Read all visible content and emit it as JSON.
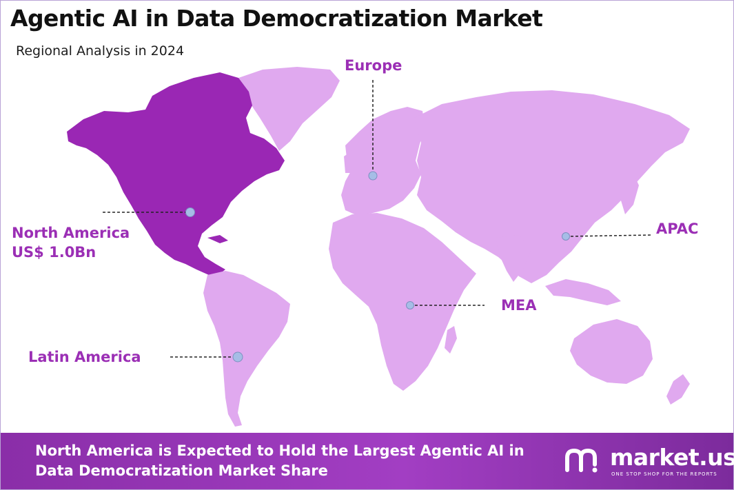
{
  "title": "Agentic AI in Data Democratization Market",
  "subtitle": "Regional Analysis in 2024",
  "colors": {
    "highlight_region": "#9a27b4",
    "other_regions": "#e0a9ef",
    "label_text": "#9b2fb5",
    "marker_fill": "#a6bde6",
    "footer_bg": "#9436b5"
  },
  "regions": [
    {
      "id": "north-america",
      "name": "North America",
      "value": "US$ 1.0Bn",
      "highlighted": true
    },
    {
      "id": "europe",
      "name": "Europe",
      "highlighted": false
    },
    {
      "id": "apac",
      "name": "APAC",
      "highlighted": false
    },
    {
      "id": "mea",
      "name": "MEA",
      "highlighted": false
    },
    {
      "id": "latin-america",
      "name": "Latin America",
      "highlighted": false
    }
  ],
  "footer": {
    "line1": "North America is Expected to Hold the Largest Agentic AI in",
    "line2": "Data Democratization  Market Share"
  },
  "logo": {
    "name": "market.us",
    "tagline": "ONE STOP SHOP FOR THE REPORTS"
  }
}
